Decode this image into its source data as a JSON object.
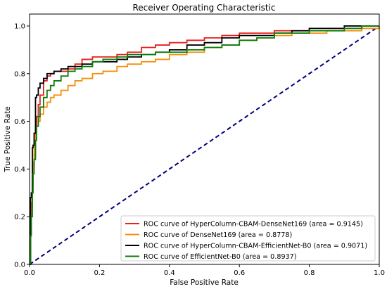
{
  "chart_data": {
    "type": "line",
    "title": "Receiver Operating Characteristic",
    "xlabel": "False Positive Rate",
    "ylabel": "True Positive Rate",
    "xlim": [
      0,
      1
    ],
    "ylim": [
      0,
      1.05
    ],
    "x_ticks": [
      0.0,
      0.2,
      0.4,
      0.6,
      0.8,
      1.0
    ],
    "y_ticks": [
      0.0,
      0.2,
      0.4,
      0.6,
      0.8,
      1.0
    ],
    "x_tick_labels": [
      "0.0",
      "0.2",
      "0.4",
      "0.6",
      "0.8",
      "1.0"
    ],
    "y_tick_labels": [
      "0.0",
      "0.2",
      "0.4",
      "0.6",
      "0.8",
      "1.0"
    ],
    "grid": false,
    "legend_position": "lower right",
    "series": [
      {
        "name": "ROC curve of HyperColumn-CBAM-DenseNet169  (area = 0.9145)",
        "color": "#e8201c",
        "x": [
          0,
          0.003,
          0.005,
          0.008,
          0.01,
          0.013,
          0.017,
          0.02,
          0.025,
          0.03,
          0.04,
          0.05,
          0.06,
          0.07,
          0.09,
          0.11,
          0.13,
          0.15,
          0.18,
          0.21,
          0.25,
          0.28,
          0.32,
          0.36,
          0.4,
          0.45,
          0.5,
          0.55,
          0.6,
          0.65,
          0.7,
          0.75,
          0.8,
          0.85,
          0.9,
          0.95,
          1.0
        ],
        "y": [
          0,
          0.13,
          0.24,
          0.33,
          0.41,
          0.46,
          0.58,
          0.62,
          0.67,
          0.71,
          0.77,
          0.79,
          0.8,
          0.81,
          0.81,
          0.82,
          0.84,
          0.86,
          0.87,
          0.87,
          0.88,
          0.89,
          0.91,
          0.92,
          0.93,
          0.94,
          0.95,
          0.96,
          0.97,
          0.97,
          0.98,
          0.98,
          0.99,
          0.99,
          0.99,
          1.0,
          1.0
        ]
      },
      {
        "name": "ROC curve of DenseNet169 (area = 0.8778)",
        "color": "#f5900f",
        "x": [
          0,
          0.003,
          0.005,
          0.008,
          0.01,
          0.013,
          0.017,
          0.02,
          0.025,
          0.03,
          0.04,
          0.05,
          0.06,
          0.07,
          0.09,
          0.11,
          0.13,
          0.15,
          0.18,
          0.21,
          0.25,
          0.28,
          0.32,
          0.36,
          0.4,
          0.45,
          0.5,
          0.55,
          0.6,
          0.65,
          0.7,
          0.75,
          0.8,
          0.85,
          0.9,
          0.95,
          1.0
        ],
        "y": [
          0,
          0.15,
          0.26,
          0.35,
          0.43,
          0.5,
          0.55,
          0.58,
          0.6,
          0.63,
          0.66,
          0.68,
          0.7,
          0.71,
          0.73,
          0.75,
          0.77,
          0.78,
          0.8,
          0.81,
          0.83,
          0.84,
          0.85,
          0.86,
          0.88,
          0.89,
          0.91,
          0.92,
          0.94,
          0.95,
          0.96,
          0.97,
          0.97,
          0.98,
          0.98,
          0.99,
          1.0
        ]
      },
      {
        "name": "ROC curve of HyperColumn-CBAM-EfficientNet-B0 (area = 0.9071)",
        "color": "#000000",
        "x": [
          0,
          0.003,
          0.005,
          0.008,
          0.01,
          0.013,
          0.017,
          0.02,
          0.025,
          0.03,
          0.04,
          0.05,
          0.06,
          0.07,
          0.09,
          0.11,
          0.13,
          0.15,
          0.18,
          0.21,
          0.25,
          0.28,
          0.32,
          0.36,
          0.4,
          0.45,
          0.5,
          0.55,
          0.6,
          0.65,
          0.7,
          0.75,
          0.8,
          0.85,
          0.9,
          0.95,
          1.0
        ],
        "y": [
          0,
          0.28,
          0.3,
          0.49,
          0.5,
          0.55,
          0.7,
          0.71,
          0.74,
          0.76,
          0.78,
          0.8,
          0.8,
          0.81,
          0.82,
          0.83,
          0.83,
          0.84,
          0.85,
          0.85,
          0.86,
          0.87,
          0.88,
          0.89,
          0.9,
          0.92,
          0.93,
          0.95,
          0.96,
          0.96,
          0.97,
          0.98,
          0.99,
          0.99,
          1.0,
          1.0,
          1.0
        ]
      },
      {
        "name": "ROC curve of EfficientNet-B0 (area = 0.8937)",
        "color": "#0a7d0a",
        "x": [
          0,
          0.003,
          0.005,
          0.008,
          0.01,
          0.013,
          0.017,
          0.02,
          0.025,
          0.03,
          0.04,
          0.05,
          0.06,
          0.07,
          0.09,
          0.11,
          0.13,
          0.15,
          0.18,
          0.21,
          0.25,
          0.28,
          0.32,
          0.36,
          0.4,
          0.45,
          0.5,
          0.55,
          0.6,
          0.65,
          0.7,
          0.75,
          0.8,
          0.85,
          0.9,
          0.95,
          1.0
        ],
        "y": [
          0,
          0.12,
          0.2,
          0.3,
          0.38,
          0.44,
          0.52,
          0.58,
          0.62,
          0.66,
          0.7,
          0.73,
          0.75,
          0.77,
          0.79,
          0.81,
          0.82,
          0.83,
          0.85,
          0.86,
          0.87,
          0.88,
          0.88,
          0.89,
          0.89,
          0.9,
          0.91,
          0.92,
          0.94,
          0.95,
          0.97,
          0.97,
          0.98,
          0.98,
          0.99,
          1.0,
          1.0
        ]
      }
    ],
    "reference_line": {
      "x": [
        0,
        1
      ],
      "y": [
        0,
        1
      ],
      "color": "#00007f",
      "style": "dashed"
    }
  }
}
